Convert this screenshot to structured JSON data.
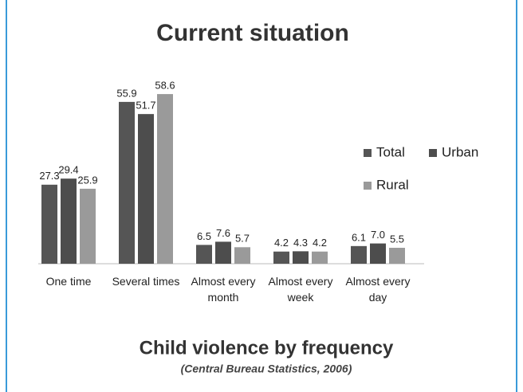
{
  "chart_data": {
    "type": "bar",
    "title": "Current situation",
    "subtitle": "Child violence by frequency",
    "source": "(Central Bureau Statistics, 2006)",
    "categories": [
      "One time",
      "Several times",
      "Almost every month",
      "Almost every week",
      "Almost every day"
    ],
    "series": [
      {
        "name": "Total",
        "color": "#555555",
        "values": [
          27.3,
          55.9,
          6.5,
          4.2,
          6.1
        ]
      },
      {
        "name": "Urban",
        "color": "#4d4d4d",
        "values": [
          29.4,
          51.7,
          7.6,
          4.3,
          7.0
        ],
        "value_labels": [
          "29.4",
          "51.7",
          "7.6",
          "4.3",
          "7.0"
        ]
      },
      {
        "name": "Rural",
        "color": "#9a9a9a",
        "values": [
          25.9,
          58.6,
          5.7,
          4.2,
          5.5
        ]
      }
    ],
    "ylim": [
      0,
      60
    ]
  }
}
